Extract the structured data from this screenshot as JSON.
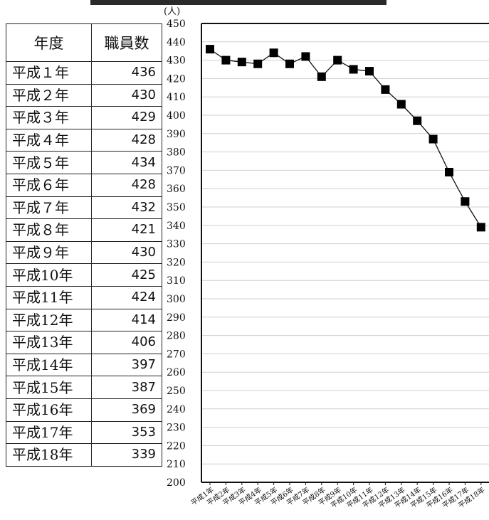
{
  "table": {
    "header": {
      "year": "年度",
      "count": "職員数"
    },
    "rows": [
      {
        "year": "平成１年",
        "count": "436"
      },
      {
        "year": "平成２年",
        "count": "430"
      },
      {
        "year": "平成３年",
        "count": "429"
      },
      {
        "year": "平成４年",
        "count": "428"
      },
      {
        "year": "平成５年",
        "count": "434"
      },
      {
        "year": "平成６年",
        "count": "428"
      },
      {
        "year": "平成７年",
        "count": "432"
      },
      {
        "year": "平成８年",
        "count": "421"
      },
      {
        "year": "平成９年",
        "count": "430"
      },
      {
        "year": "平成10年",
        "count": "425"
      },
      {
        "year": "平成11年",
        "count": "424"
      },
      {
        "year": "平成12年",
        "count": "414"
      },
      {
        "year": "平成13年",
        "count": "406"
      },
      {
        "year": "平成14年",
        "count": "397"
      },
      {
        "year": "平成15年",
        "count": "387"
      },
      {
        "year": "平成16年",
        "count": "369"
      },
      {
        "year": "平成17年",
        "count": "353"
      },
      {
        "year": "平成18年",
        "count": "339"
      }
    ]
  },
  "chart_data": {
    "type": "line",
    "title": "",
    "xlabel": "",
    "ylabel": "(人)",
    "ylim": [
      200,
      450
    ],
    "y_ticks": [
      200,
      210,
      220,
      230,
      240,
      250,
      260,
      270,
      280,
      290,
      300,
      310,
      320,
      330,
      340,
      350,
      360,
      370,
      380,
      390,
      400,
      410,
      420,
      430,
      440,
      450
    ],
    "grid": true,
    "legend": "none",
    "marker": "square",
    "categories": [
      "平成1年",
      "平成2年",
      "平成3年",
      "平成4年",
      "平成5年",
      "平成6年",
      "平成7年",
      "平成8年",
      "平成9年",
      "平成10年",
      "平成11年",
      "平成12年",
      "平成13年",
      "平成14年",
      "平成15年",
      "平成16年",
      "平成17年",
      "平成18年"
    ],
    "series": [
      {
        "values": [
          436,
          430,
          429,
          428,
          434,
          428,
          432,
          421,
          430,
          425,
          424,
          414,
          406,
          397,
          387,
          369,
          353,
          339
        ]
      }
    ],
    "colors": {
      "line": "#111111",
      "marker": "#000000",
      "grid": "#cfcfcf",
      "axis": "#111111"
    }
  }
}
